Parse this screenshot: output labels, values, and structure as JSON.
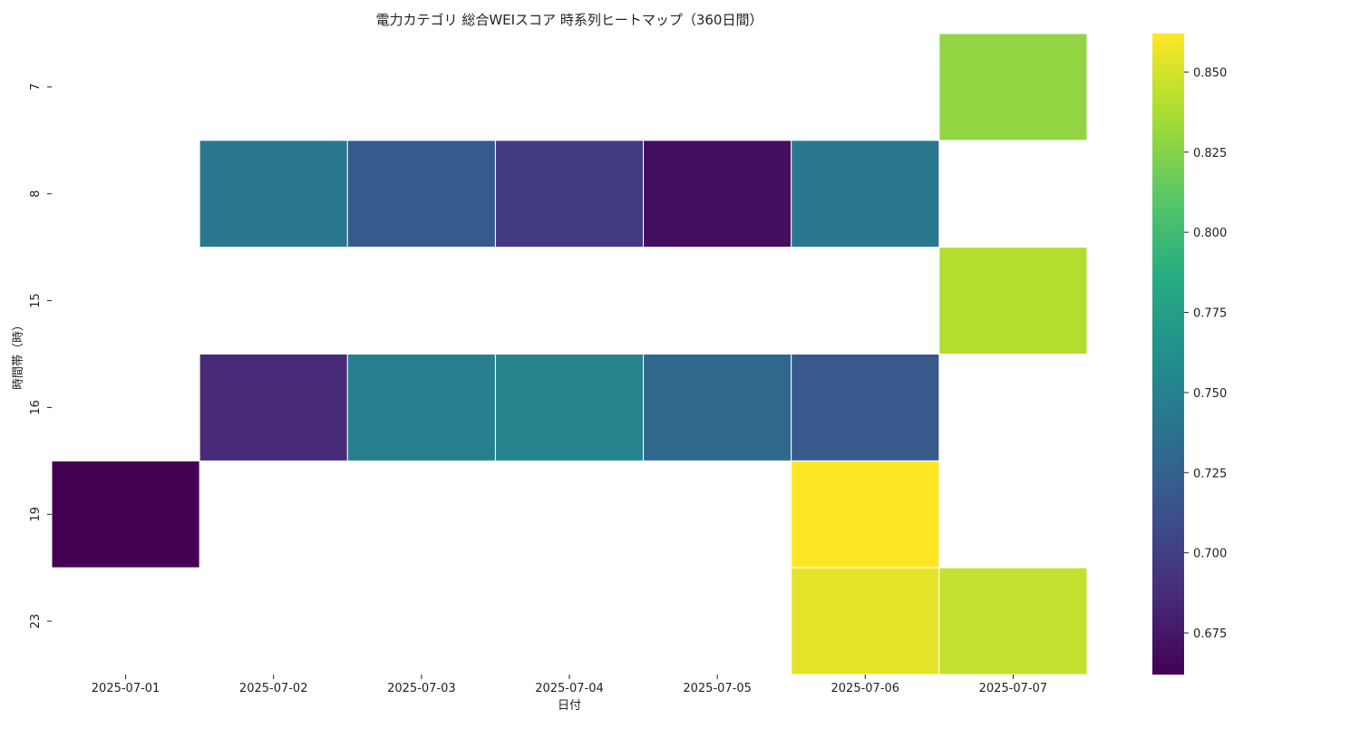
{
  "chart_data": {
    "type": "heatmap",
    "title": "電力カテゴリ 総合WEIスコア 時系列ヒートマップ（360日間）",
    "xlabel": "日付",
    "ylabel": "時間帯（時）",
    "x_categories": [
      "2025-07-01",
      "2025-07-02",
      "2025-07-03",
      "2025-07-04",
      "2025-07-05",
      "2025-07-06",
      "2025-07-07"
    ],
    "y_categories": [
      "7",
      "8",
      "15",
      "16",
      "19",
      "23"
    ],
    "values": [
      [
        null,
        null,
        null,
        null,
        null,
        null,
        0.829
      ],
      [
        null,
        0.743,
        0.719,
        0.697,
        0.669,
        0.743,
        null
      ],
      [
        null,
        null,
        null,
        null,
        null,
        null,
        0.84
      ],
      [
        null,
        0.686,
        0.748,
        0.752,
        0.73,
        0.718,
        null
      ],
      [
        0.662,
        null,
        null,
        null,
        null,
        0.862,
        null
      ],
      [
        null,
        null,
        null,
        null,
        null,
        0.855,
        0.845
      ]
    ],
    "colormap": "viridis",
    "colorbar": {
      "vmin": 0.662,
      "vmax": 0.862,
      "ticks": [
        0.675,
        0.7,
        0.725,
        0.75,
        0.775,
        0.8,
        0.825,
        0.85
      ],
      "tick_labels": [
        "0.675",
        "0.700",
        "0.725",
        "0.750",
        "0.775",
        "0.800",
        "0.825",
        "0.850"
      ]
    }
  }
}
